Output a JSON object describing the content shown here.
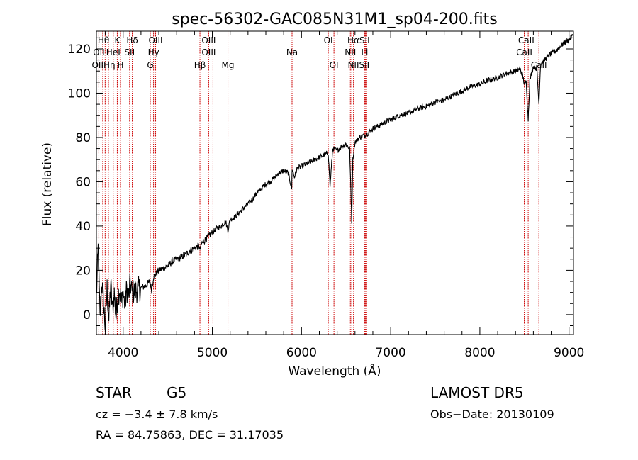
{
  "chart_data": {
    "type": "line",
    "title": "spec-56302-GAC085N31M1_sp04-200.fits",
    "xlabel": "Wavelength (Å)",
    "ylabel": "Flux (relative)",
    "xlim": [
      3700,
      9050
    ],
    "ylim": [
      -9,
      128
    ],
    "xticks": [
      4000,
      5000,
      6000,
      7000,
      8000,
      9000
    ],
    "yticks": [
      0,
      20,
      40,
      60,
      80,
      100,
      120
    ],
    "grid": false,
    "line_color": "#000000",
    "marker_color": "#cc0000",
    "series": [
      {
        "x": [
          3700,
          3720,
          3740,
          3760,
          3780,
          3800,
          3820,
          3840,
          3860,
          3880,
          3900,
          3920,
          3940,
          3960,
          3980,
          4000,
          4020,
          4040,
          4060,
          4080,
          4100,
          4150,
          4200,
          4250,
          4300,
          4320,
          4340,
          4360,
          4400,
          4450,
          4500,
          4550,
          4600,
          4650,
          4700,
          4750,
          4800,
          4850,
          4861,
          4880,
          4900,
          4950,
          5000,
          5050,
          5100,
          5150,
          5175,
          5200,
          5250,
          5300,
          5350,
          5400,
          5450,
          5500,
          5550,
          5600,
          5650,
          5700,
          5750,
          5800,
          5850,
          5890,
          5895,
          5920,
          5950,
          6000,
          6050,
          6100,
          6150,
          6200,
          6250,
          6300,
          6320,
          6350,
          6400,
          6450,
          6500,
          6540,
          6563,
          6575,
          6600,
          6650,
          6700,
          6750,
          6800,
          6850,
          6900,
          6950,
          7000,
          7100,
          7200,
          7300,
          7400,
          7500,
          7600,
          7700,
          7800,
          7900,
          8000,
          8100,
          8200,
          8300,
          8400,
          8450,
          8480,
          8500,
          8520,
          8542,
          8560,
          8600,
          8640,
          8662,
          8680,
          8700,
          8750,
          8800,
          8850,
          8900,
          8950,
          9000,
          9040
        ],
        "y": [
          8,
          30,
          -2,
          15,
          5,
          -6,
          12,
          -3,
          14,
          2,
          10,
          -1,
          8,
          12,
          5,
          10,
          4,
          12,
          8,
          14,
          10,
          11,
          12,
          13,
          15,
          11,
          17,
          18,
          20,
          21,
          22,
          24,
          25,
          26,
          27,
          29,
          30,
          31,
          29,
          32,
          33,
          35,
          37,
          39,
          40,
          42,
          38,
          43,
          44,
          46,
          48,
          50,
          52,
          55,
          57,
          59,
          60,
          62,
          64,
          65,
          64,
          57,
          66,
          62,
          66,
          67,
          68,
          69,
          70,
          71,
          72,
          73,
          58,
          75,
          74,
          76,
          77,
          75,
          42,
          70,
          78,
          80,
          81,
          82,
          84,
          85,
          86,
          87,
          88,
          90,
          91,
          93,
          94,
          96,
          97,
          99,
          101,
          103,
          104,
          106,
          107,
          109,
          110,
          111,
          108,
          104,
          105,
          88,
          106,
          112,
          111,
          95,
          113,
          114,
          116,
          118,
          119,
          121,
          123,
          124,
          126
        ]
      }
    ],
    "lines": [
      {
        "x": 3727,
        "label": "OII"
      },
      {
        "x": 3771,
        "label": "Hθ"
      },
      {
        "x": 3798,
        "label": "Hθ"
      },
      {
        "x": 3835,
        "label": "Hη"
      },
      {
        "x": 3889,
        "label": "HeI"
      },
      {
        "x": 3934,
        "label": "K"
      },
      {
        "x": 3970,
        "label": "H"
      },
      {
        "x": 4072,
        "label": "SII"
      },
      {
        "x": 4102,
        "label": "Hδ"
      },
      {
        "x": 4304,
        "label": "G"
      },
      {
        "x": 4341,
        "label": "Hγ"
      },
      {
        "x": 4364,
        "label": "OIII"
      },
      {
        "x": 4861,
        "label": "Hβ"
      },
      {
        "x": 4959,
        "label": "OIII"
      },
      {
        "x": 5007,
        "label": "OIII"
      },
      {
        "x": 5175,
        "label": "Mg"
      },
      {
        "x": 5894,
        "label": "Na"
      },
      {
        "x": 6300,
        "label": "OI"
      },
      {
        "x": 6364,
        "label": "OI"
      },
      {
        "x": 6548,
        "label": "NII"
      },
      {
        "x": 6563,
        "label": "Hα"
      },
      {
        "x": 6583,
        "label": "NII"
      },
      {
        "x": 6708,
        "label": "Li"
      },
      {
        "x": 6716,
        "label": "SII"
      },
      {
        "x": 6731,
        "label": "SII"
      },
      {
        "x": 8498,
        "label": "CaII"
      },
      {
        "x": 8542,
        "label": "CaII"
      },
      {
        "x": 8662,
        "label": "CaII"
      }
    ],
    "labels": [
      {
        "text": "Hθ",
        "row": 1,
        "x": 3780
      },
      {
        "text": "K",
        "row": 1,
        "x": 3934
      },
      {
        "text": "Hδ",
        "row": 1,
        "x": 4102
      },
      {
        "text": "OIII",
        "row": 1,
        "x": 4364
      },
      {
        "text": "OIII",
        "row": 1,
        "x": 4959
      },
      {
        "text": "OI",
        "row": 1,
        "x": 6300
      },
      {
        "text": "HαSII",
        "row": 1,
        "x": 6640
      },
      {
        "text": "CaII",
        "row": 1,
        "x": 8520
      },
      {
        "text": "OII",
        "row": 2,
        "x": 3727
      },
      {
        "text": "HeI",
        "row": 2,
        "x": 3889
      },
      {
        "text": "SII",
        "row": 2,
        "x": 4072
      },
      {
        "text": "Hγ",
        "row": 2,
        "x": 4341
      },
      {
        "text": "OIII",
        "row": 2,
        "x": 4959
      },
      {
        "text": "Na",
        "row": 2,
        "x": 5894
      },
      {
        "text": "NII",
        "row": 2,
        "x": 6548
      },
      {
        "text": "Li",
        "row": 2,
        "x": 6708
      },
      {
        "text": "CaII",
        "row": 2,
        "x": 8498
      },
      {
        "text": "OIIHη",
        "row": 3,
        "x": 3780
      },
      {
        "text": "H",
        "row": 3,
        "x": 3970
      },
      {
        "text": "G",
        "row": 3,
        "x": 4304
      },
      {
        "text": "Hβ",
        "row": 3,
        "x": 4861
      },
      {
        "text": "Mg",
        "row": 3,
        "x": 5175
      },
      {
        "text": "OI",
        "row": 3,
        "x": 6364
      },
      {
        "text": "NIISII",
        "row": 3,
        "x": 6640
      },
      {
        "text": "CaII",
        "row": 3,
        "x": 8662
      }
    ]
  },
  "info": {
    "class": "STAR",
    "subclass": "G5",
    "survey": "LAMOST DR5",
    "cz": "cz = −3.4 ± 7.8 km/s",
    "obs_date": "Obs−Date: 20130109",
    "coords": "RA =  84.75863, DEC =  31.17035"
  }
}
